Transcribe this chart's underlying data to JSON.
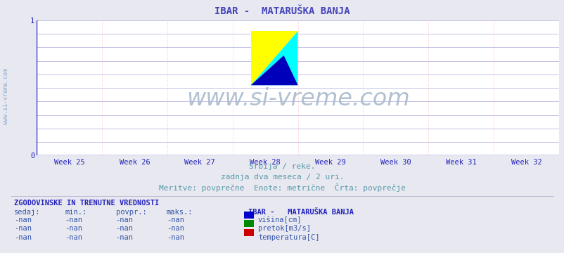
{
  "title": "IBAR -  MATARUŠKA BANJA",
  "title_color": "#4444bb",
  "title_fontsize": 10,
  "bg_color": "#e8e8f0",
  "plot_bg_color": "#ffffff",
  "x_label_weeks": [
    "Week 25",
    "Week 26",
    "Week 27",
    "Week 28",
    "Week 29",
    "Week 30",
    "Week 31",
    "Week 32"
  ],
  "grid_color_h": "#aaaadd",
  "grid_color_v": "#ffaaaa",
  "axis_color": "#2222bb",
  "watermark": "www.si-vreme.com",
  "watermark_color": "#aabbcc",
  "watermark_fontsize": 24,
  "subtitle1": "Srbija / reke.",
  "subtitle2": "zadnja dva meseca / 2 uri.",
  "subtitle3": "Meritve: povprečne  Enote: metrične  Črta: povprečje",
  "subtitle_color": "#5599aa",
  "subtitle_fontsize": 8,
  "left_label": "www.si-vreme.com",
  "left_label_color": "#88aacc",
  "section_title": "ZGODOVINSKE IN TRENUTNE VREDNOSTI",
  "section_title_color": "#2222bb",
  "col_headers": [
    "sedaj:",
    "min.:",
    "povpr.:",
    "maks.:"
  ],
  "col_values": [
    "-nan",
    "-nan",
    "-nan",
    "-nan"
  ],
  "legend_title": "IBAR -   MATARUŠKA BANJA",
  "legend_items": [
    {
      "label": "višina[cm]",
      "color": "#0000cc"
    },
    {
      "label": "pretok[m3/s]",
      "color": "#008800"
    },
    {
      "label": "temperatura[C]",
      "color": "#cc0000"
    }
  ],
  "table_color": "#3355aa",
  "table_fontsize": 7.5
}
